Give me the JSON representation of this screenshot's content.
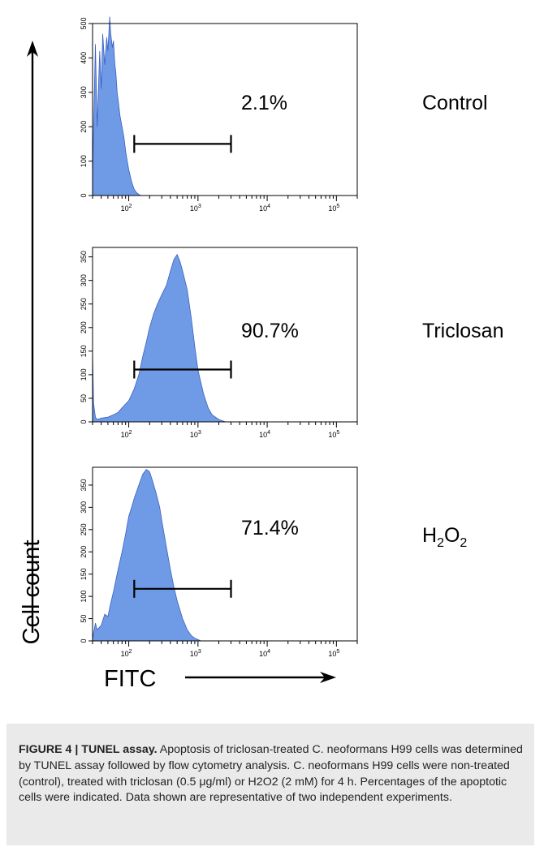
{
  "colors": {
    "fill": "#6f9be6",
    "stroke": "#3a5fc0",
    "axis": "#000000"
  },
  "y_axis_label": "Cell count",
  "x_axis_label": "FITC",
  "chart_data": [
    {
      "type": "area",
      "label": "Control",
      "percentage": "2.1%",
      "xscale": "log",
      "xlim": [
        30,
        200000
      ],
      "ylim": [
        0,
        500
      ],
      "y_ticks": [
        0,
        100,
        200,
        300,
        400,
        500
      ],
      "y_tick_labels": [
        "0",
        "100",
        "200",
        "300",
        "400",
        "500"
      ],
      "x_ticks": [
        100,
        1000,
        10000,
        100000
      ],
      "x_tick_labels": [
        "10",
        "10",
        "10",
        "10"
      ],
      "x_tick_exponents": [
        "2",
        "3",
        "4",
        "5"
      ],
      "gate": [
        120,
        3000
      ],
      "x": [
        30,
        33,
        35,
        38,
        40,
        42,
        45,
        48,
        50,
        53,
        55,
        58,
        60,
        63,
        65,
        68,
        70,
        75,
        80,
        85,
        90,
        95,
        100,
        110,
        120,
        130,
        140,
        150
      ],
      "y": [
        60,
        440,
        200,
        420,
        310,
        470,
        380,
        460,
        420,
        520,
        470,
        430,
        450,
        380,
        360,
        300,
        280,
        230,
        200,
        170,
        130,
        100,
        75,
        40,
        18,
        8,
        3,
        0
      ]
    },
    {
      "type": "area",
      "label": "Triclosan",
      "percentage": "90.7%",
      "xscale": "log",
      "xlim": [
        30,
        200000
      ],
      "ylim": [
        0,
        370
      ],
      "y_ticks": [
        0,
        50,
        100,
        150,
        200,
        250,
        300,
        350
      ],
      "y_tick_labels": [
        "0",
        "50",
        "100",
        "150",
        "200",
        "250",
        "300",
        "350"
      ],
      "x_ticks": [
        100,
        1000,
        10000,
        100000
      ],
      "x_tick_labels": [
        "10",
        "10",
        "10",
        "10"
      ],
      "x_tick_exponents": [
        "2",
        "3",
        "4",
        "5"
      ],
      "gate": [
        120,
        3000
      ],
      "x": [
        30,
        31,
        33,
        35,
        40,
        50,
        60,
        70,
        80,
        100,
        120,
        140,
        160,
        180,
        200,
        230,
        260,
        300,
        350,
        400,
        450,
        500,
        550,
        600,
        700,
        800,
        900,
        1000,
        1200,
        1400,
        1600,
        2000,
        2500
      ],
      "y": [
        150,
        40,
        10,
        5,
        8,
        10,
        15,
        20,
        30,
        45,
        70,
        100,
        140,
        170,
        200,
        230,
        250,
        270,
        290,
        320,
        345,
        355,
        340,
        320,
        280,
        220,
        160,
        110,
        60,
        30,
        15,
        5,
        0
      ]
    },
    {
      "type": "area",
      "label": "H",
      "label_sub1": "2",
      "label_mid": "O",
      "label_sub2": "2",
      "percentage": "71.4%",
      "xscale": "log",
      "xlim": [
        30,
        200000
      ],
      "ylim": [
        0,
        390
      ],
      "y_ticks": [
        0,
        50,
        100,
        150,
        200,
        250,
        300,
        350
      ],
      "y_tick_labels": [
        "0",
        "50",
        "100",
        "150",
        "200",
        "250",
        "300",
        "350"
      ],
      "x_ticks": [
        100,
        1000,
        10000,
        100000
      ],
      "x_tick_labels": [
        "10",
        "10",
        "10",
        "10"
      ],
      "x_tick_exponents": [
        "2",
        "3",
        "4",
        "5"
      ],
      "gate": [
        120,
        3000
      ],
      "x": [
        30,
        33,
        35,
        40,
        45,
        50,
        55,
        60,
        70,
        80,
        90,
        100,
        110,
        120,
        140,
        160,
        180,
        200,
        220,
        250,
        280,
        300,
        350,
        400,
        450,
        500,
        600,
        700,
        800,
        900,
        1000,
        1100
      ],
      "y": [
        5,
        40,
        25,
        35,
        60,
        55,
        85,
        110,
        160,
        200,
        240,
        280,
        300,
        320,
        350,
        375,
        385,
        380,
        360,
        330,
        300,
        270,
        210,
        160,
        120,
        90,
        50,
        25,
        12,
        6,
        3,
        0
      ]
    }
  ],
  "caption": {
    "fig_label": "FIGURE 4 | TUNEL assay.",
    "text": " Apoptosis of triclosan-treated C. neoformans H99 cells was determined by TUNEL assay followed by flow cytometry analysis. C. neoformans H99 cells were non-treated (control), treated with triclosan (0.5 μg/ml) or H2O2 (2 mM) for 4 h. Percentages of the apoptotic cells were indicated. Data shown are representative of two independent experiments."
  }
}
